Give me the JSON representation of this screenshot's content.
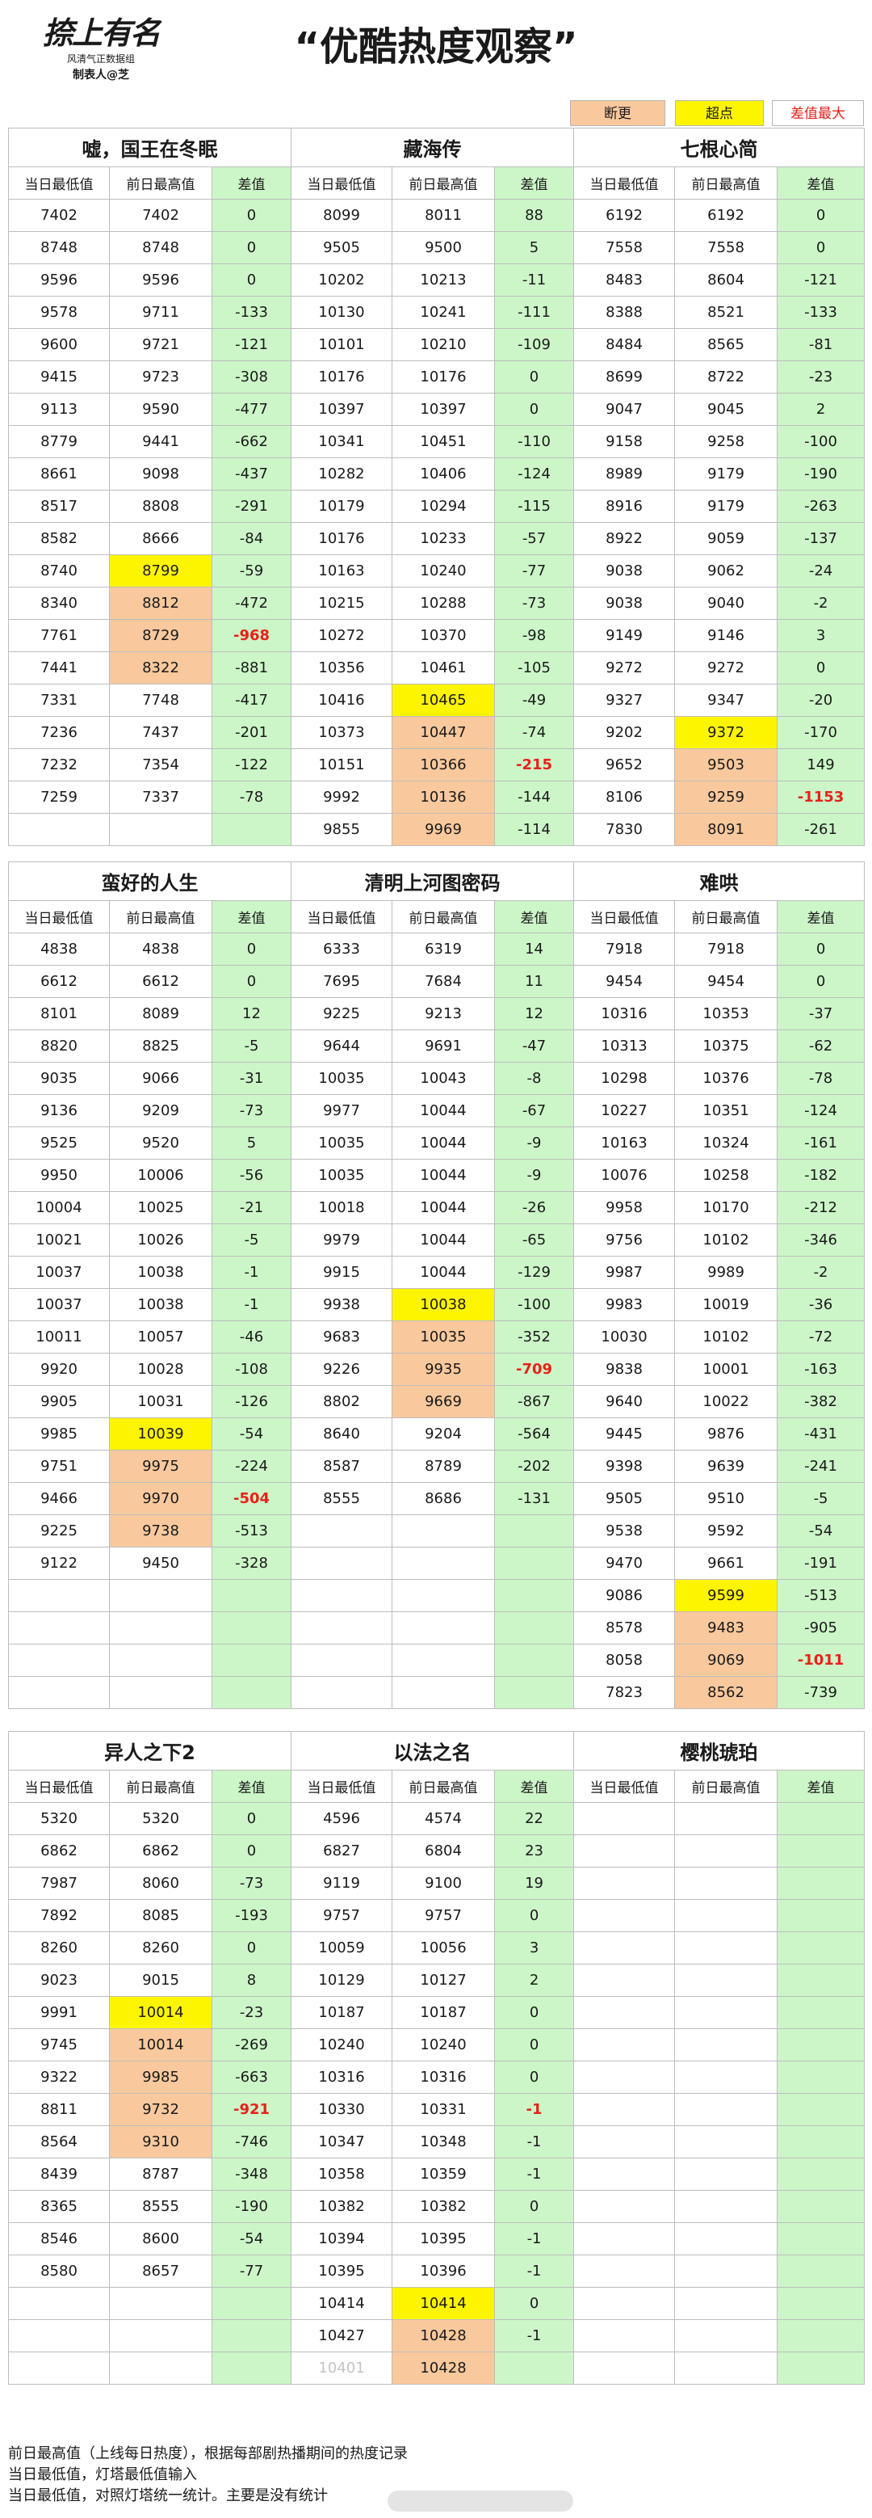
{
  "header": {
    "logo_text": "捺上有名",
    "logo_sub": "风清气正数据组",
    "maker": "制表人@芝",
    "title": "“优酷热度观察”"
  },
  "legend": {
    "duangeng": "断更",
    "chaodian": "超点",
    "max_diff": "差值最大"
  },
  "colors": {
    "diff_bg": "#ccf6c8",
    "yellow": "#fdf400",
    "orange": "#f9c89d",
    "red": "#e8221a",
    "legend_bg": "#f9c89d"
  },
  "col_headers": [
    "当日最低值",
    "前日最高值",
    "差值"
  ],
  "blocks": [
    {
      "shows": [
        "嘘，国王在冬眠",
        "藏海传",
        "七根心简"
      ],
      "rows": [
        [
          "7402",
          "7402",
          "0",
          "8099",
          "8011",
          "88",
          "6192",
          "6192",
          "0"
        ],
        [
          "8748",
          "8748",
          "0",
          "9505",
          "9500",
          "5",
          "7558",
          "7558",
          "0"
        ],
        [
          "9596",
          "9596",
          "0",
          "10202",
          "10213",
          "-11",
          "8483",
          "8604",
          "-121"
        ],
        [
          "9578",
          "9711",
          "-133",
          "10130",
          "10241",
          "-111",
          "8388",
          "8521",
          "-133"
        ],
        [
          "9600",
          "9721",
          "-121",
          "10101",
          "10210",
          "-109",
          "8484",
          "8565",
          "-81"
        ],
        [
          "9415",
          "9723",
          "-308",
          "10176",
          "10176",
          "0",
          "8699",
          "8722",
          "-23"
        ],
        [
          "9113",
          "9590",
          "-477",
          "10397",
          "10397",
          "0",
          "9047",
          "9045",
          "2"
        ],
        [
          "8779",
          "9441",
          "-662",
          "10341",
          "10451",
          "-110",
          "9158",
          "9258",
          "-100"
        ],
        [
          "8661",
          "9098",
          "-437",
          "10282",
          "10406",
          "-124",
          "8989",
          "9179",
          "-190"
        ],
        [
          "8517",
          "8808",
          "-291",
          "10179",
          "10294",
          "-115",
          "8916",
          "9179",
          "-263"
        ],
        [
          "8582",
          "8666",
          "-84",
          "10176",
          "10233",
          "-57",
          "8922",
          "9059",
          "-137"
        ],
        [
          "8740",
          "8799",
          "-59",
          "10163",
          "10240",
          "-77",
          "9038",
          "9062",
          "-24"
        ],
        [
          "8340",
          "8812",
          "-472",
          "10215",
          "10288",
          "-73",
          "9038",
          "9040",
          "-2"
        ],
        [
          "7761",
          "8729",
          "-968",
          "10272",
          "10370",
          "-98",
          "9149",
          "9146",
          "3"
        ],
        [
          "7441",
          "8322",
          "-881",
          "10356",
          "10461",
          "-105",
          "9272",
          "9272",
          "0"
        ],
        [
          "7331",
          "7748",
          "-417",
          "10416",
          "10465",
          "-49",
          "9327",
          "9347",
          "-20"
        ],
        [
          "7236",
          "7437",
          "-201",
          "10373",
          "10447",
          "-74",
          "9202",
          "9372",
          "-170"
        ],
        [
          "7232",
          "7354",
          "-122",
          "10151",
          "10366",
          "-215",
          "9652",
          "9503",
          "149"
        ],
        [
          "7259",
          "7337",
          "-78",
          "9992",
          "10136",
          "-144",
          "8106",
          "9259",
          "-1153"
        ],
        [
          "",
          "",
          "",
          "9855",
          "9969",
          "-114",
          "7830",
          "8091",
          "-261"
        ]
      ]
    },
    {
      "shows": [
        "蛮好的人生",
        "清明上河图密码",
        "难哄"
      ],
      "rows": [
        [
          "4838",
          "4838",
          "0",
          "6333",
          "6319",
          "14",
          "7918",
          "7918",
          "0"
        ],
        [
          "6612",
          "6612",
          "0",
          "7695",
          "7684",
          "11",
          "9454",
          "9454",
          "0"
        ],
        [
          "8101",
          "8089",
          "12",
          "9225",
          "9213",
          "12",
          "10316",
          "10353",
          "-37"
        ],
        [
          "8820",
          "8825",
          "-5",
          "9644",
          "9691",
          "-47",
          "10313",
          "10375",
          "-62"
        ],
        [
          "9035",
          "9066",
          "-31",
          "10035",
          "10043",
          "-8",
          "10298",
          "10376",
          "-78"
        ],
        [
          "9136",
          "9209",
          "-73",
          "9977",
          "10044",
          "-67",
          "10227",
          "10351",
          "-124"
        ],
        [
          "9525",
          "9520",
          "5",
          "10035",
          "10044",
          "-9",
          "10163",
          "10324",
          "-161"
        ],
        [
          "9950",
          "10006",
          "-56",
          "10035",
          "10044",
          "-9",
          "10076",
          "10258",
          "-182"
        ],
        [
          "10004",
          "10025",
          "-21",
          "10018",
          "10044",
          "-26",
          "9958",
          "10170",
          "-212"
        ],
        [
          "10021",
          "10026",
          "-5",
          "9979",
          "10044",
          "-65",
          "9756",
          "10102",
          "-346"
        ],
        [
          "10037",
          "10038",
          "-1",
          "9915",
          "10044",
          "-129",
          "9987",
          "9989",
          "-2"
        ],
        [
          "10037",
          "10038",
          "-1",
          "9938",
          "10038",
          "-100",
          "9983",
          "10019",
          "-36"
        ],
        [
          "10011",
          "10057",
          "-46",
          "9683",
          "10035",
          "-352",
          "10030",
          "10102",
          "-72"
        ],
        [
          "9920",
          "10028",
          "-108",
          "9226",
          "9935",
          "-709",
          "9838",
          "10001",
          "-163"
        ],
        [
          "9905",
          "10031",
          "-126",
          "8802",
          "9669",
          "-867",
          "9640",
          "10022",
          "-382"
        ],
        [
          "9985",
          "10039",
          "-54",
          "8640",
          "9204",
          "-564",
          "9445",
          "9876",
          "-431"
        ],
        [
          "9751",
          "9975",
          "-224",
          "8587",
          "8789",
          "-202",
          "9398",
          "9639",
          "-241"
        ],
        [
          "9466",
          "9970",
          "-504",
          "8555",
          "8686",
          "-131",
          "9505",
          "9510",
          "-5"
        ],
        [
          "9225",
          "9738",
          "-513",
          "",
          "",
          "",
          "9538",
          "9592",
          "-54"
        ],
        [
          "9122",
          "9450",
          "-328",
          "",
          "",
          "",
          "9470",
          "9661",
          "-191"
        ],
        [
          "",
          "",
          "",
          "",
          "",
          "",
          "9086",
          "9599",
          "-513"
        ],
        [
          "",
          "",
          "",
          "",
          "",
          "",
          "8578",
          "9483",
          "-905"
        ],
        [
          "",
          "",
          "",
          "",
          "",
          "",
          "8058",
          "9069",
          "-1011"
        ],
        [
          "",
          "",
          "",
          "",
          "",
          "",
          "7823",
          "8562",
          "-739"
        ]
      ]
    },
    {
      "shows": [
        "异人之下2",
        "以法之名",
        "樱桃琥珀"
      ],
      "rows": [
        [
          "5320",
          "5320",
          "0",
          "4596",
          "4574",
          "22",
          "",
          "",
          ""
        ],
        [
          "6862",
          "6862",
          "0",
          "6827",
          "6804",
          "23",
          "",
          "",
          ""
        ],
        [
          "7987",
          "8060",
          "-73",
          "9119",
          "9100",
          "19",
          "",
          "",
          ""
        ],
        [
          "7892",
          "8085",
          "-193",
          "9757",
          "9757",
          "0",
          "",
          "",
          ""
        ],
        [
          "8260",
          "8260",
          "0",
          "10059",
          "10056",
          "3",
          "",
          "",
          ""
        ],
        [
          "9023",
          "9015",
          "8",
          "10129",
          "10127",
          "2",
          "",
          "",
          ""
        ],
        [
          "9991",
          "10014",
          "-23",
          "10187",
          "10187",
          "0",
          "",
          "",
          ""
        ],
        [
          "9745",
          "10014",
          "-269",
          "10240",
          "10240",
          "0",
          "",
          "",
          ""
        ],
        [
          "9322",
          "9985",
          "-663",
          "10316",
          "10316",
          "0",
          "",
          "",
          ""
        ],
        [
          "8811",
          "9732",
          "-921",
          "10330",
          "10331",
          "-1",
          "",
          "",
          ""
        ],
        [
          "8564",
          "9310",
          "-746",
          "10347",
          "10348",
          "-1",
          "",
          "",
          ""
        ],
        [
          "8439",
          "8787",
          "-348",
          "10358",
          "10359",
          "-1",
          "",
          "",
          ""
        ],
        [
          "8365",
          "8555",
          "-190",
          "10382",
          "10382",
          "0",
          "",
          "",
          ""
        ],
        [
          "8546",
          "8600",
          "-54",
          "10394",
          "10395",
          "-1",
          "",
          "",
          ""
        ],
        [
          "8580",
          "8657",
          "-77",
          "10395",
          "10396",
          "-1",
          "",
          "",
          ""
        ],
        [
          "",
          "",
          "",
          "10414",
          "10414",
          "0",
          "",
          "",
          ""
        ],
        [
          "",
          "",
          "",
          "10427",
          "10428",
          "-1",
          "",
          "",
          ""
        ],
        [
          "",
          "",
          "",
          "10401",
          "10428",
          "",
          "",
          "",
          ""
        ]
      ]
    }
  ],
  "notes": [
    "前日最高值（上线每日热度），根据每部剧热播期间的热度记录",
    "当日最低值，灯塔最低值输入",
    "当日最低值，对照灯塔统一统计。主要是没有统计"
  ]
}
